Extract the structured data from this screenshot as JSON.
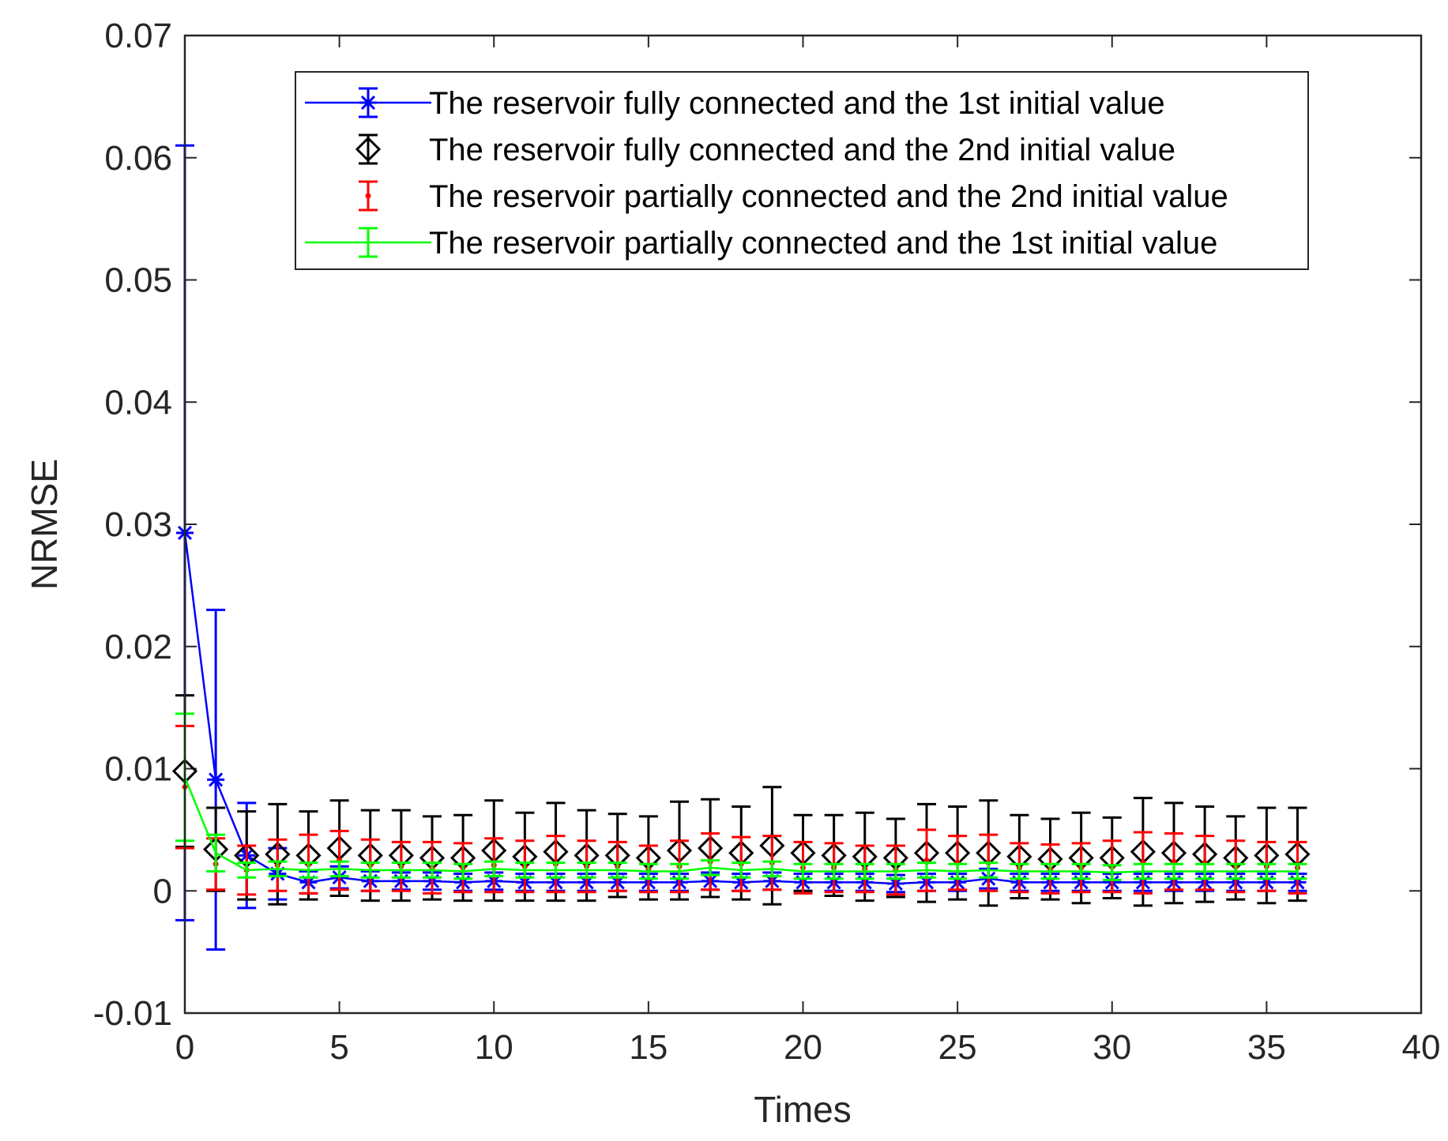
{
  "chart_data": {
    "type": "line",
    "title": "",
    "xlabel": "Times",
    "ylabel": "NRMSE",
    "xlim": [
      0,
      40
    ],
    "ylim": [
      -0.01,
      0.07
    ],
    "xticks": [
      0,
      5,
      10,
      15,
      20,
      25,
      30,
      35,
      40
    ],
    "xtick_labels": [
      "0",
      "5",
      "10",
      "15",
      "20",
      "25",
      "30",
      "35",
      "40"
    ],
    "yticks": [
      -0.01,
      0,
      0.01,
      0.02,
      0.03,
      0.04,
      0.05,
      0.06,
      0.07
    ],
    "ytick_labels": [
      "-0.01",
      "0",
      "0.01",
      "0.02",
      "0.03",
      "0.04",
      "0.05",
      "0.06",
      "0.07"
    ],
    "grid": false,
    "legend_position": "top-right",
    "x": [
      0,
      1,
      2,
      3,
      4,
      5,
      6,
      7,
      8,
      9,
      10,
      11,
      12,
      13,
      14,
      15,
      16,
      17,
      18,
      19,
      20,
      21,
      22,
      23,
      24,
      25,
      26,
      27,
      28,
      29,
      30,
      31,
      32,
      33,
      34,
      35,
      36
    ],
    "series": [
      {
        "name": "The reservoir fully connected and the 1st initial value",
        "color": "#0000ff",
        "marker": "asterisk",
        "values": [
          0.0293,
          0.0091,
          0.0029,
          0.0014,
          0.0007,
          0.0011,
          0.0008,
          0.0008,
          0.0008,
          0.0007,
          0.0008,
          0.0007,
          0.0007,
          0.0007,
          0.0007,
          0.0007,
          0.0007,
          0.0008,
          0.0007,
          0.0008,
          0.0007,
          0.0007,
          0.0007,
          0.0006,
          0.0007,
          0.0007,
          0.001,
          0.0007,
          0.0007,
          0.0007,
          0.0007,
          0.0007,
          0.0007,
          0.0007,
          0.0007,
          0.0007,
          0.0007
        ],
        "errors": [
          0.0317,
          0.0139,
          0.0043,
          0.0021,
          0.0009,
          0.0009,
          0.0008,
          0.0007,
          0.0007,
          0.0007,
          0.0007,
          0.0007,
          0.0007,
          0.0007,
          0.0007,
          0.0007,
          0.0007,
          0.0007,
          0.0007,
          0.0007,
          0.0007,
          0.0007,
          0.0007,
          0.0007,
          0.0007,
          0.0007,
          0.0008,
          0.0007,
          0.0007,
          0.0007,
          0.0007,
          0.0007,
          0.0007,
          0.0007,
          0.0007,
          0.0007,
          0.0007
        ]
      },
      {
        "name": "The reservoir fully connected and the 2nd initial value",
        "color": "#000000",
        "marker": "diamond",
        "values": [
          0.0098,
          0.0034,
          0.0029,
          0.003,
          0.0029,
          0.0035,
          0.0029,
          0.0029,
          0.0027,
          0.0027,
          0.0033,
          0.0028,
          0.0032,
          0.0029,
          0.0029,
          0.0027,
          0.0033,
          0.0035,
          0.0031,
          0.0037,
          0.0031,
          0.0029,
          0.0028,
          0.0027,
          0.0031,
          0.0031,
          0.0031,
          0.0028,
          0.0026,
          0.0027,
          0.0027,
          0.0032,
          0.0031,
          0.003,
          0.0027,
          0.0029,
          0.003
        ],
        "errors": [
          0.0062,
          0.0034,
          0.0036,
          0.0041,
          0.0036,
          0.0039,
          0.0037,
          0.0037,
          0.0034,
          0.0035,
          0.0041,
          0.0036,
          0.004,
          0.0037,
          0.0034,
          0.0034,
          0.004,
          0.004,
          0.0038,
          0.0048,
          0.0031,
          0.0033,
          0.0036,
          0.0032,
          0.004,
          0.0038,
          0.0043,
          0.0034,
          0.0033,
          0.0037,
          0.0033,
          0.0044,
          0.0041,
          0.0039,
          0.0034,
          0.0039,
          0.0038
        ]
      },
      {
        "name": "The reservoir partially connected and the 2nd initial value",
        "color": "#ff0000",
        "marker": "dot",
        "values": [
          0.0085,
          0.0022,
          0.0017,
          0.0021,
          0.0022,
          0.0025,
          0.0021,
          0.002,
          0.0019,
          0.0019,
          0.0021,
          0.002,
          0.0022,
          0.002,
          0.002,
          0.0018,
          0.002,
          0.0024,
          0.0022,
          0.0023,
          0.0019,
          0.0019,
          0.0018,
          0.0017,
          0.0025,
          0.0023,
          0.0023,
          0.0019,
          0.0018,
          0.0019,
          0.002,
          0.0023,
          0.0024,
          0.0023,
          0.002,
          0.002,
          0.0019
        ],
        "errors": [
          0.005,
          0.0021,
          0.002,
          0.0021,
          0.0024,
          0.0024,
          0.0021,
          0.002,
          0.0021,
          0.002,
          0.0022,
          0.0021,
          0.0023,
          0.0021,
          0.002,
          0.0019,
          0.0021,
          0.0023,
          0.0022,
          0.0022,
          0.0021,
          0.002,
          0.0019,
          0.002,
          0.0025,
          0.0022,
          0.0023,
          0.002,
          0.002,
          0.002,
          0.0021,
          0.0025,
          0.0023,
          0.0022,
          0.0021,
          0.002,
          0.0021
        ]
      },
      {
        "name": "The reservoir partially connected and the 1st initial value",
        "color": "#00ff00",
        "marker": "none",
        "values": [
          0.0093,
          0.0031,
          0.0017,
          0.0018,
          0.0017,
          0.0018,
          0.0017,
          0.0017,
          0.0017,
          0.0016,
          0.0018,
          0.0017,
          0.0017,
          0.0017,
          0.0017,
          0.0016,
          0.0016,
          0.0019,
          0.0017,
          0.0018,
          0.0016,
          0.0016,
          0.0016,
          0.0016,
          0.0017,
          0.0016,
          0.0017,
          0.0016,
          0.0016,
          0.0016,
          0.0015,
          0.0016,
          0.0016,
          0.0016,
          0.0016,
          0.0016,
          0.0016
        ],
        "errors": [
          0.0052,
          0.0015,
          0.0006,
          0.0006,
          0.0006,
          0.0006,
          0.0006,
          0.0006,
          0.0006,
          0.0006,
          0.0006,
          0.0006,
          0.0006,
          0.0006,
          0.0006,
          0.0006,
          0.0006,
          0.0006,
          0.0006,
          0.0006,
          0.0006,
          0.0006,
          0.0006,
          0.0006,
          0.0006,
          0.0006,
          0.0006,
          0.0006,
          0.0006,
          0.0006,
          0.0006,
          0.0006,
          0.0006,
          0.0006,
          0.0006,
          0.0006,
          0.0006
        ]
      }
    ]
  }
}
